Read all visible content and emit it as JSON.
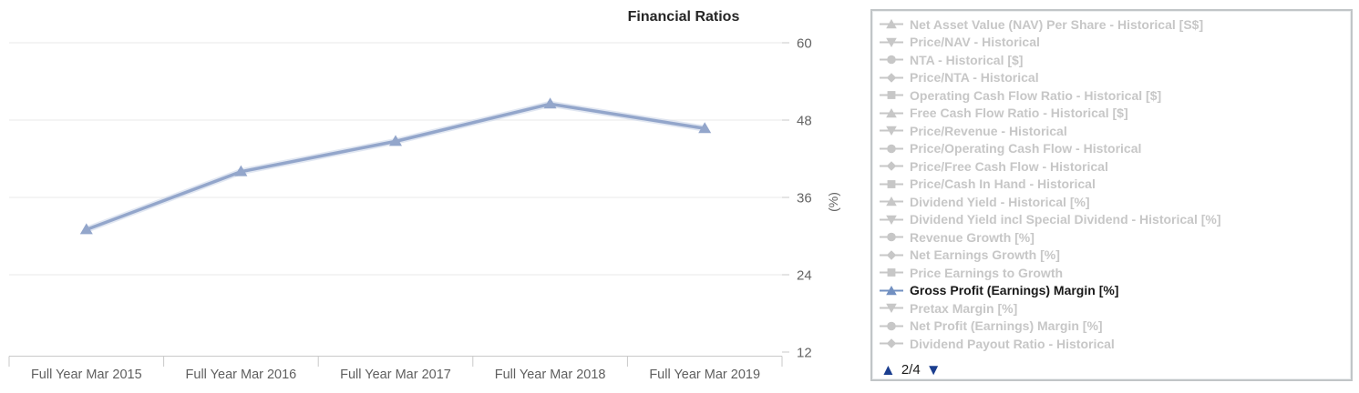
{
  "chart": {
    "title": "Financial Ratios",
    "ylabel": "(%)"
  },
  "chart_data": {
    "type": "line",
    "title": "Financial Ratios",
    "categories": [
      "Full Year Mar 2015",
      "Full Year Mar 2016",
      "Full Year Mar 2017",
      "Full Year Mar 2018",
      "Full Year Mar 2019"
    ],
    "series": [
      {
        "name": "Gross Profit (Earnings) Margin [%]",
        "values": [
          31,
          40,
          44.7,
          50.5,
          46.7
        ],
        "marker": "triangle-up",
        "color": "#93a6cb"
      }
    ],
    "xlabel": "",
    "ylabel": "(%)",
    "ylim": [
      12,
      60
    ],
    "yticks": [
      12,
      24,
      36,
      48,
      60
    ],
    "grid": true,
    "legend_position": "right-panel"
  },
  "legend": {
    "items": [
      {
        "label": "Net Asset Value (NAV) Per Share - Historical [S$]",
        "marker": "triangle-up",
        "active": false
      },
      {
        "label": "Price/NAV - Historical",
        "marker": "triangle-down",
        "active": false
      },
      {
        "label": "NTA - Historical [$]",
        "marker": "circle",
        "active": false
      },
      {
        "label": "Price/NTA - Historical",
        "marker": "diamond",
        "active": false
      },
      {
        "label": "Operating Cash Flow Ratio - Historical [$]",
        "marker": "square",
        "active": false
      },
      {
        "label": "Free Cash Flow Ratio - Historical [$]",
        "marker": "triangle-up",
        "active": false
      },
      {
        "label": "Price/Revenue - Historical",
        "marker": "triangle-down",
        "active": false
      },
      {
        "label": "Price/Operating Cash Flow - Historical",
        "marker": "circle",
        "active": false
      },
      {
        "label": "Price/Free Cash Flow - Historical",
        "marker": "diamond",
        "active": false
      },
      {
        "label": "Price/Cash In Hand - Historical",
        "marker": "square",
        "active": false
      },
      {
        "label": "Dividend Yield - Historical [%]",
        "marker": "triangle-up",
        "active": false
      },
      {
        "label": "Dividend Yield incl Special Dividend - Historical [%]",
        "marker": "triangle-down",
        "active": false
      },
      {
        "label": "Revenue Growth [%]",
        "marker": "circle",
        "active": false
      },
      {
        "label": "Net Earnings Growth [%]",
        "marker": "diamond",
        "active": false
      },
      {
        "label": "Price Earnings to Growth",
        "marker": "square",
        "active": false
      },
      {
        "label": "Gross Profit (Earnings) Margin [%]",
        "marker": "triangle-up",
        "active": true
      },
      {
        "label": "Pretax Margin [%]",
        "marker": "triangle-down",
        "active": false
      },
      {
        "label": "Net Profit (Earnings) Margin [%]",
        "marker": "circle",
        "active": false
      },
      {
        "label": "Dividend Payout Ratio - Historical",
        "marker": "diamond",
        "active": false
      }
    ],
    "pager": {
      "up_icon": "▲",
      "page_label": "2/4",
      "down_icon": "▼"
    }
  },
  "colors": {
    "line": "#93a6cb",
    "line_glow": "#c9d4e7",
    "active_marker": "#7290c1",
    "inactive": "#c7c7c7",
    "active_text": "#191919",
    "pager_arrow": "#1b3e8f",
    "grid": "#e9e9e9",
    "axis": "#c9c9c9",
    "tick_label": "#646464",
    "title": "#262626"
  }
}
